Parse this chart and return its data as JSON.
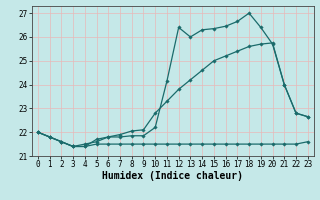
{
  "title": "",
  "xlabel": "Humidex (Indice chaleur)",
  "bg_color": "#c5e8e8",
  "grid_color": "#e8b8b8",
  "line_color": "#1a6b6b",
  "marker": "D",
  "markersize": 1.8,
  "linewidth": 0.9,
  "ylim": [
    21.0,
    27.3
  ],
  "xlim": [
    -0.5,
    23.5
  ],
  "yticks": [
    21,
    22,
    23,
    24,
    25,
    26,
    27
  ],
  "xticks": [
    0,
    1,
    2,
    3,
    4,
    5,
    6,
    7,
    8,
    9,
    10,
    11,
    12,
    13,
    14,
    15,
    16,
    17,
    18,
    19,
    20,
    21,
    22,
    23
  ],
  "line1_x": [
    0,
    1,
    2,
    3,
    4,
    5,
    6,
    7,
    8,
    9,
    10,
    11,
    12,
    13,
    14,
    15,
    16,
    17,
    18,
    19,
    20,
    21,
    22,
    23
  ],
  "line1_y": [
    22.0,
    21.8,
    21.6,
    21.4,
    21.4,
    21.7,
    21.8,
    21.8,
    21.85,
    21.85,
    22.2,
    24.15,
    26.4,
    26.0,
    26.3,
    26.35,
    26.45,
    26.65,
    27.0,
    26.4,
    25.7,
    24.0,
    22.8,
    22.65
  ],
  "line2_x": [
    0,
    1,
    2,
    3,
    4,
    5,
    6,
    7,
    8,
    9,
    10,
    11,
    12,
    13,
    14,
    15,
    16,
    17,
    18,
    19,
    20,
    21,
    22,
    23
  ],
  "line2_y": [
    22.0,
    21.8,
    21.6,
    21.4,
    21.5,
    21.6,
    21.8,
    21.9,
    22.05,
    22.1,
    22.8,
    23.3,
    23.8,
    24.2,
    24.6,
    25.0,
    25.2,
    25.4,
    25.6,
    25.7,
    25.75,
    24.0,
    22.8,
    22.65
  ],
  "line3_x": [
    0,
    1,
    2,
    3,
    4,
    5,
    6,
    7,
    8,
    9,
    10,
    11,
    12,
    13,
    14,
    15,
    16,
    17,
    18,
    19,
    20,
    21,
    22,
    23
  ],
  "line3_y": [
    22.0,
    21.8,
    21.6,
    21.4,
    21.4,
    21.5,
    21.5,
    21.5,
    21.5,
    21.5,
    21.5,
    21.5,
    21.5,
    21.5,
    21.5,
    21.5,
    21.5,
    21.5,
    21.5,
    21.5,
    21.5,
    21.5,
    21.5,
    21.6
  ],
  "tick_fontsize": 5.5,
  "label_fontsize": 7.0,
  "label_fontweight": "bold"
}
